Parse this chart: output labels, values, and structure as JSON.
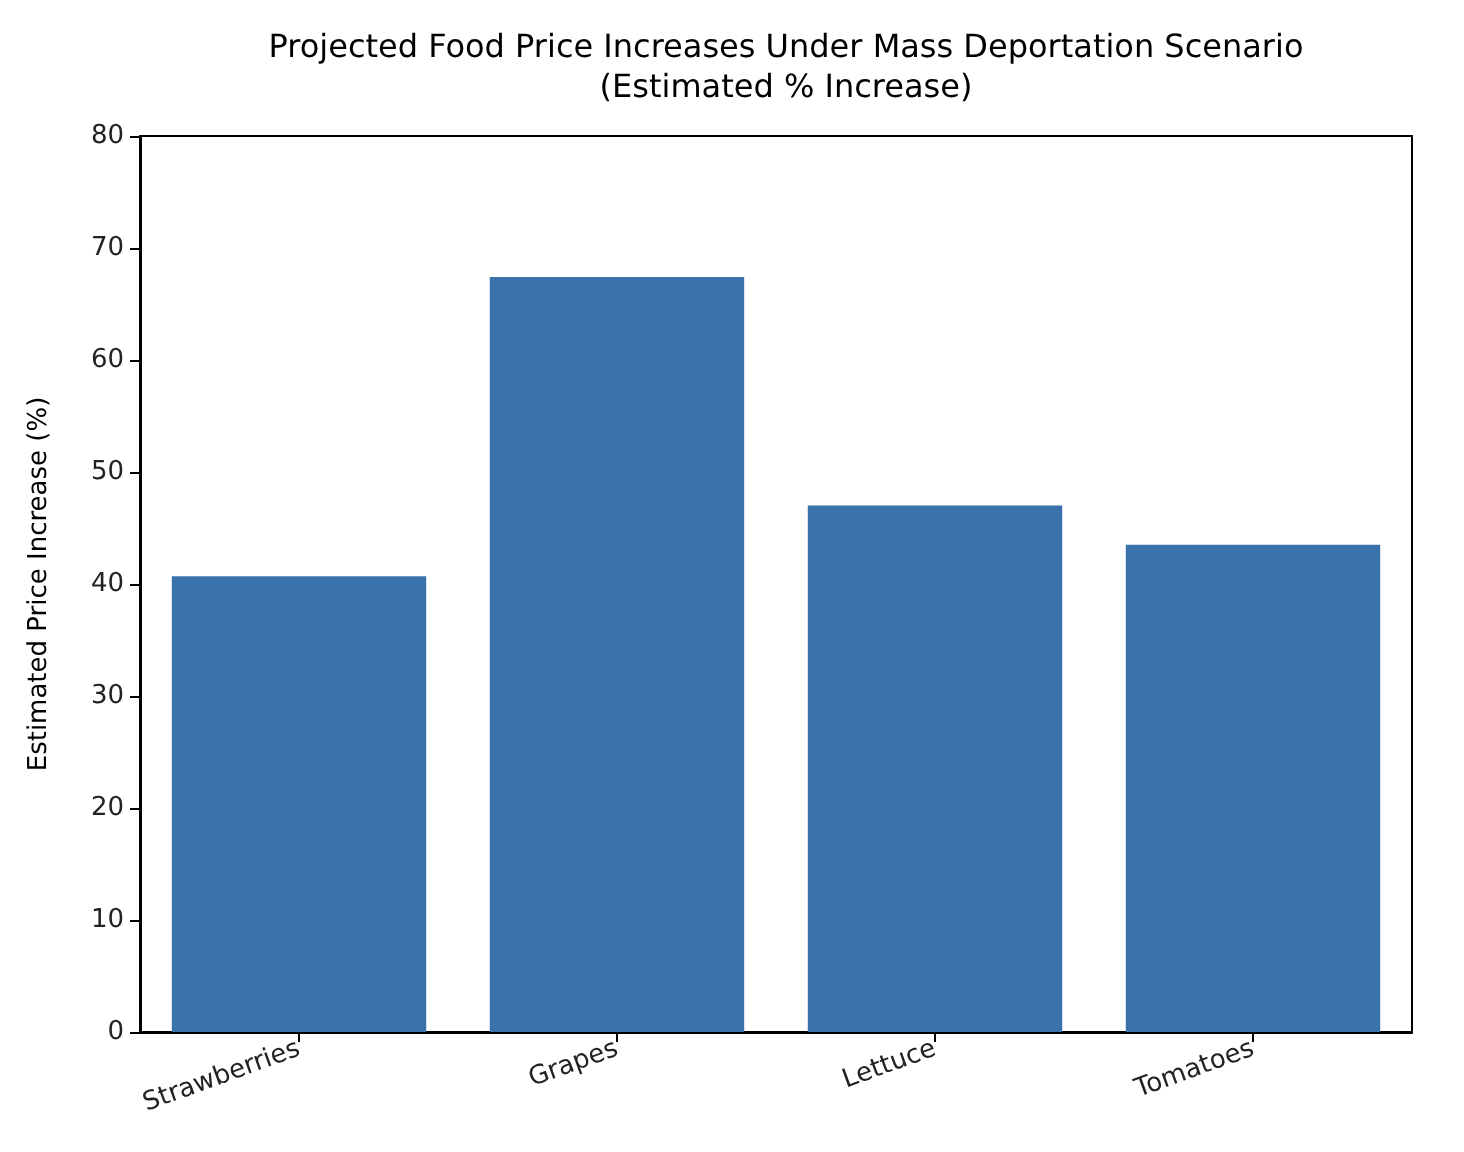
{
  "chart_data": {
    "type": "bar",
    "title": "Projected Food Price Increases Under Mass Deportation Scenario\n(Estimated % Increase)",
    "ylabel": "Estimated Price Increase (%)",
    "categories": [
      "Strawberries",
      "Grapes",
      "Lettuce",
      "Tomatoes"
    ],
    "values": [
      40.7,
      67.4,
      47.0,
      43.5
    ],
    "color": "#3a73ac",
    "ylim": [
      0,
      80
    ],
    "yticks": [
      0,
      10,
      20,
      30,
      40,
      50,
      60,
      70,
      80
    ],
    "grid": false
  }
}
